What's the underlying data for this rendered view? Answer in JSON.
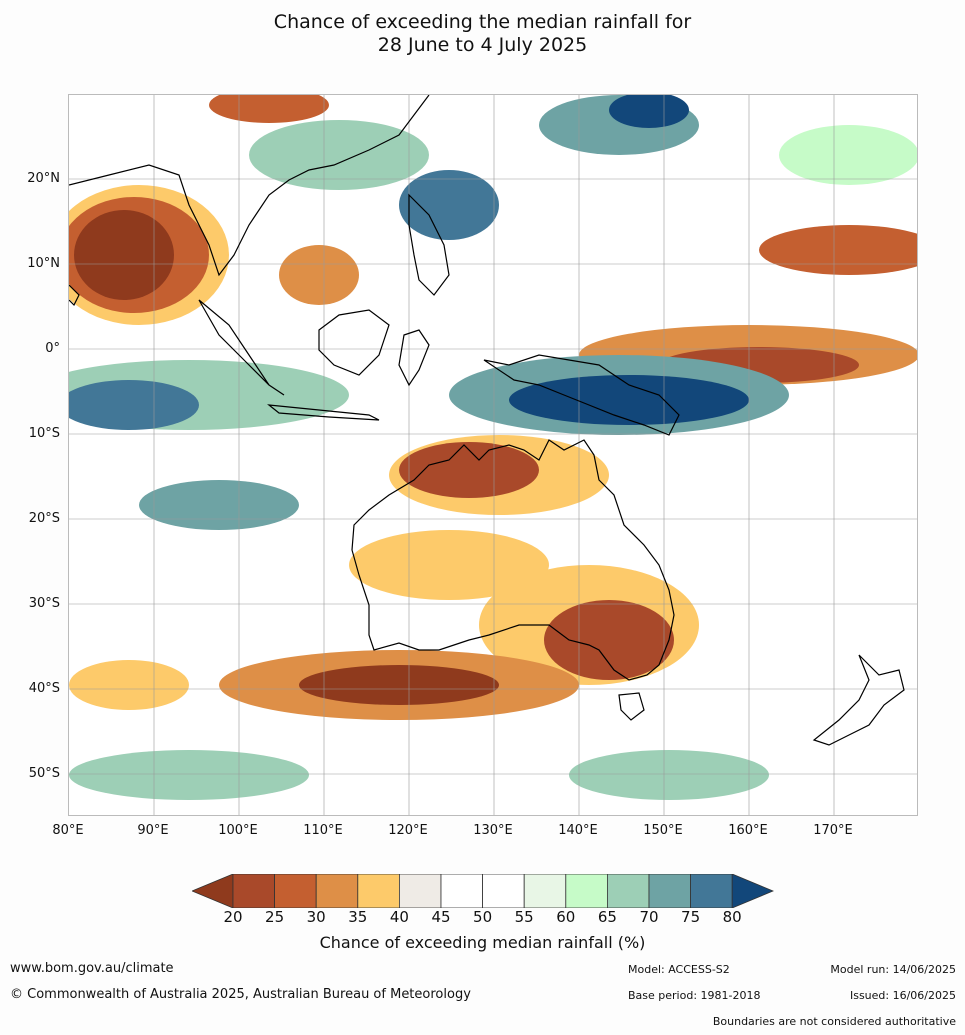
{
  "title": {
    "line1": "Chance of exceeding the median rainfall for",
    "line2": "28 June to 4 July 2025"
  },
  "map": {
    "lat_ticks": [
      "20°N",
      "10°N",
      "0°",
      "10°S",
      "20°S",
      "30°S",
      "40°S",
      "50°S"
    ],
    "lon_ticks": [
      "80°E",
      "90°E",
      "100°E",
      "110°E",
      "120°E",
      "130°E",
      "140°E",
      "150°E",
      "160°E",
      "170°E"
    ],
    "extent": {
      "lon": [
        80,
        180
      ],
      "lat": [
        -55,
        30
      ]
    },
    "regions_dry": [
      "Bay of Bengal",
      "Northern Australia",
      "South-east Australia",
      "Southern Ocean south of WA",
      "Central Pacific near equator"
    ],
    "regions_wet": [
      "Maritime Continent / New Guinea",
      "Indian Ocean south of equator",
      "South China Sea",
      "Southern Ocean far south"
    ]
  },
  "colorbar": {
    "ticks": [
      "20",
      "25",
      "30",
      "35",
      "40",
      "45",
      "50",
      "55",
      "60",
      "65",
      "70",
      "75",
      "80"
    ],
    "colors": [
      "#8f3a1d",
      "#a9492a",
      "#c45f30",
      "#de8f47",
      "#fdca6a",
      "#efebe6",
      "#ffffff",
      "#ffffff",
      "#e8f6e6",
      "#c6fbc8",
      "#9dcfb6",
      "#6ea3a4",
      "#427797",
      "#12477a"
    ],
    "title": "Chance of exceeding median rainfall (%)"
  },
  "footer": {
    "website": "www.bom.gov.au/climate",
    "copyright": "© Commonwealth of Australia 2025, Australian Bureau of Meteorology",
    "model": "Model: ACCESS-S2",
    "base_period": "Base period: 1981-2018",
    "model_run": "Model run: 14/06/2025",
    "issued": "Issued: 16/06/2025",
    "disclaimer": "Boundaries are not considered authoritative"
  }
}
